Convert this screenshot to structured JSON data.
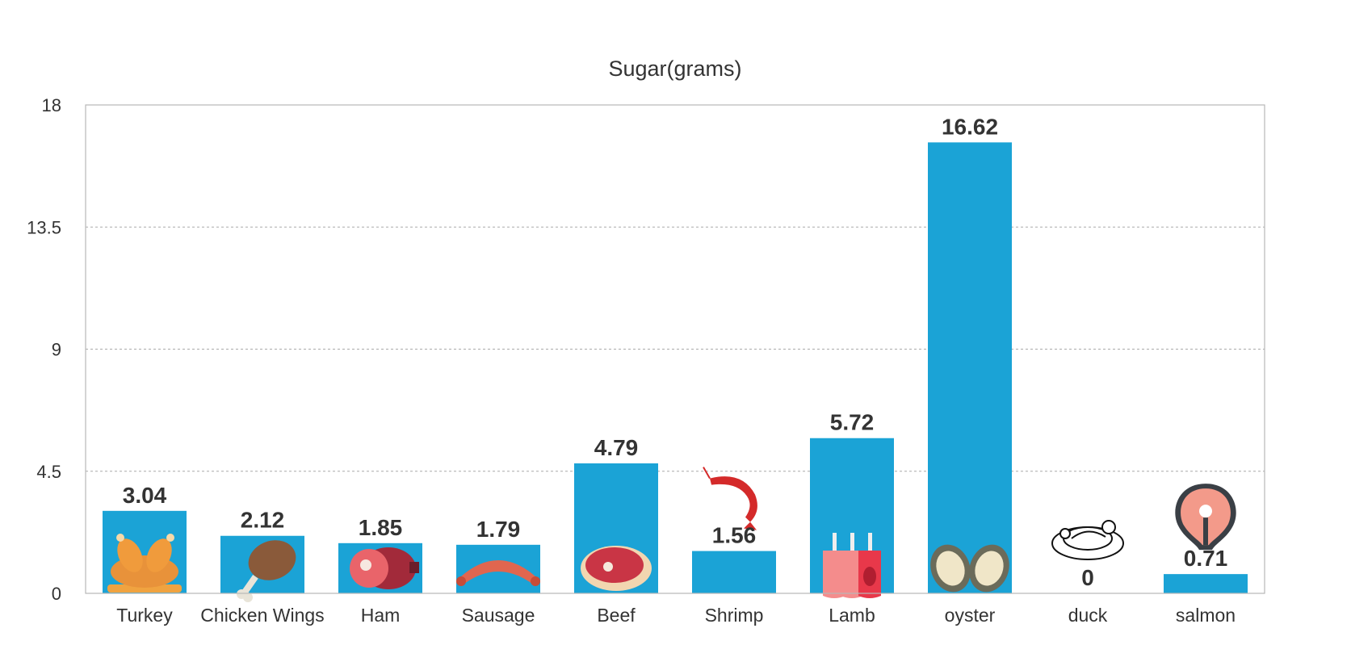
{
  "chart_data": {
    "type": "bar",
    "title": "Sugar(grams)",
    "categories": [
      "Turkey",
      "Chicken Wings",
      "Ham",
      "Sausage",
      "Beef",
      "Shrimp",
      "Lamb",
      "oyster",
      "duck",
      "salmon"
    ],
    "values": [
      3.04,
      2.12,
      1.85,
      1.79,
      4.79,
      1.56,
      5.72,
      16.62,
      0,
      0.71
    ],
    "value_labels": [
      "3.04",
      "2.12",
      "1.85",
      "1.79",
      "4.79",
      "1.56",
      "5.72",
      "16.62",
      "0",
      "0.71"
    ],
    "ylim": [
      0,
      18
    ],
    "yticks": [
      "0",
      "4.5",
      "9",
      "13.5",
      "18"
    ],
    "ytick_values": [
      0,
      4.5,
      9,
      13.5,
      18
    ],
    "grid": true,
    "bar_color": "#1ba3d6",
    "icons": [
      "turkey-icon",
      "chicken-wing-icon",
      "ham-icon",
      "sausage-icon",
      "steak-icon",
      "shrimp-icon",
      "lamb-rack-icon",
      "oyster-icon",
      "duck-icon",
      "salmon-steak-icon"
    ]
  }
}
